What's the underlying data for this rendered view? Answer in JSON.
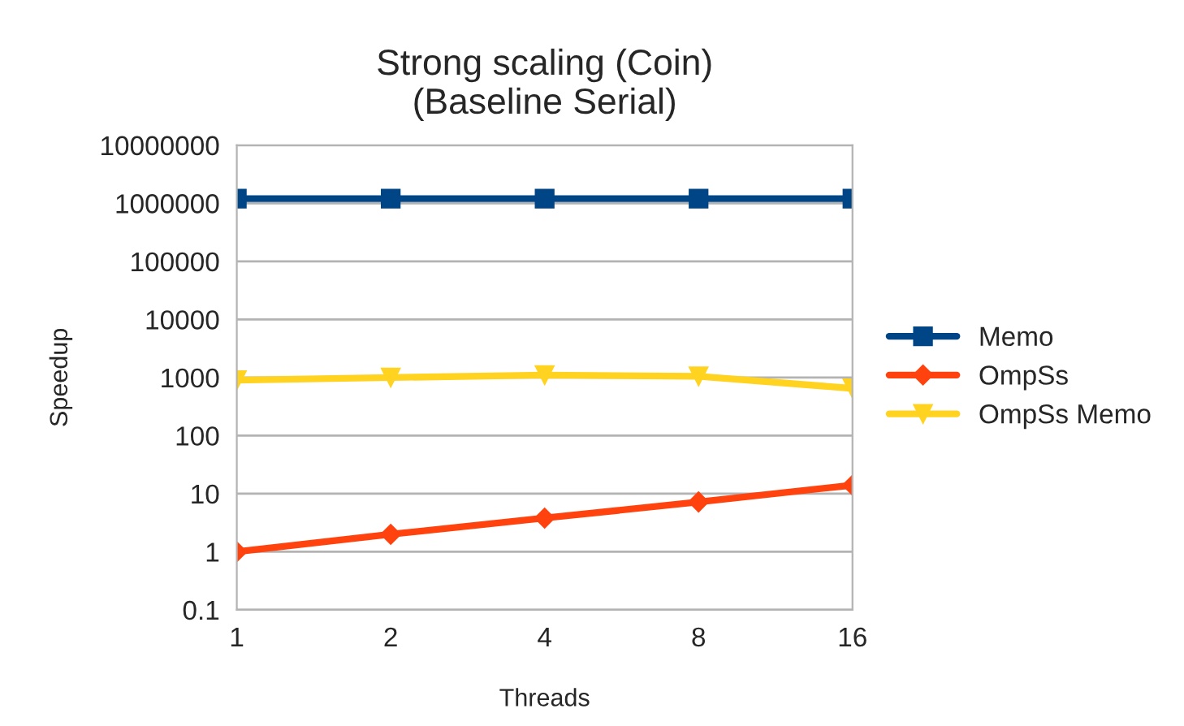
{
  "chart_data": {
    "type": "line",
    "title": "Strong scaling (Coin)\n(Baseline Serial)",
    "xlabel": "Threads",
    "ylabel": "Speedup",
    "categories": [
      "1",
      "2",
      "4",
      "8",
      "16"
    ],
    "series": [
      {
        "name": "Memo",
        "color": "#004586",
        "marker": "square",
        "values": [
          1200000,
          1200000,
          1200000,
          1200000,
          1200000
        ]
      },
      {
        "name": "OmpSs",
        "color": "#ff420e",
        "marker": "diamond",
        "values": [
          1,
          2,
          3.8,
          7.2,
          14
        ]
      },
      {
        "name": "OmpSs Memo",
        "color": "#ffd320",
        "marker": "triangle",
        "values": [
          900,
          1000,
          1100,
          1050,
          650
        ]
      }
    ],
    "log": "y",
    "ylim": [
      0.1,
      10000000
    ],
    "yticks": [
      0.1,
      1,
      10,
      100,
      1000,
      10000,
      100000,
      1000000,
      10000000
    ],
    "grid": "y",
    "legend": "right",
    "line_style": "solid"
  }
}
